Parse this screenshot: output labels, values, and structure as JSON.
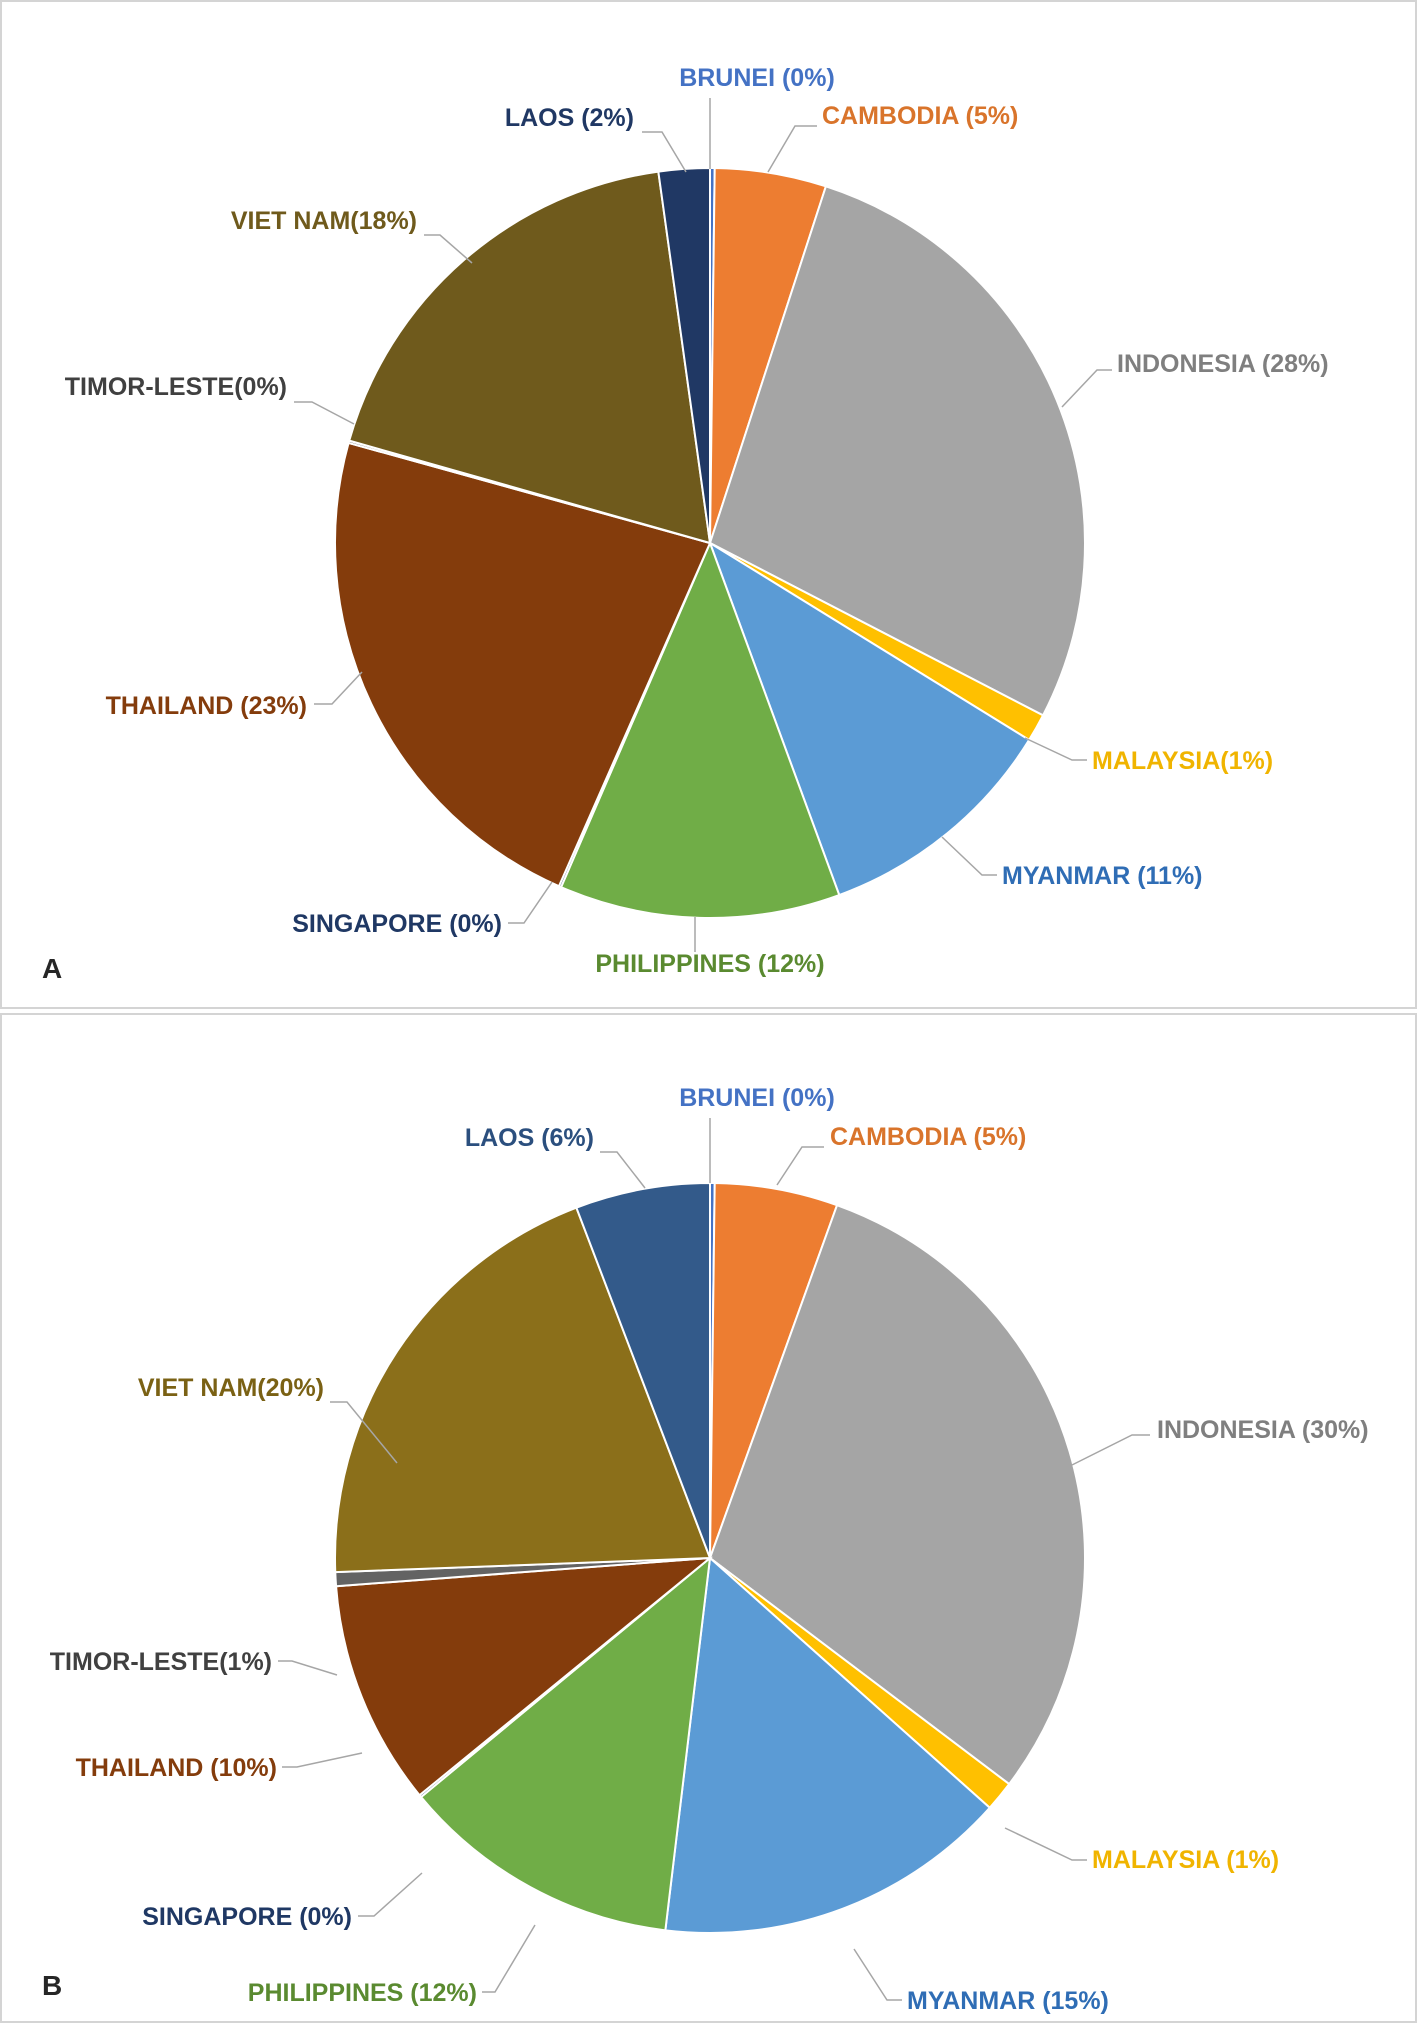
{
  "chart_data": [
    {
      "type": "pie",
      "panel": "A",
      "slices": [
        {
          "label": "BRUNEI (0%)",
          "value": 0.2,
          "color": "#4472c4"
        },
        {
          "label": "CAMBODIA (5%)",
          "value": 4.8,
          "color": "#ed7d31"
        },
        {
          "label": "INDONESIA (28%)",
          "value": 27.6,
          "color": "#a5a5a5"
        },
        {
          "label": "MALAYSIA(1%)",
          "value": 1.2,
          "color": "#ffc000"
        },
        {
          "label": "MYANMAR (11%)",
          "value": 10.6,
          "color": "#5b9bd5"
        },
        {
          "label": "PHILIPPINES (12%)",
          "value": 12.1,
          "color": "#70ad47"
        },
        {
          "label": "SINGAPORE (0%)",
          "value": 0.1,
          "color": "#264478"
        },
        {
          "label": "THAILAND (23%)",
          "value": 22.7,
          "color": "#843c0c"
        },
        {
          "label": "TIMOR-LESTE(0%)",
          "value": 0.1,
          "color": "#636363"
        },
        {
          "label": "VIET NAM(18%)",
          "value": 18.4,
          "color": "#6f5a1c"
        },
        {
          "label": "LAOS (2%)",
          "value": 2.2,
          "color": "#203864"
        }
      ]
    },
    {
      "type": "pie",
      "panel": "B",
      "slices": [
        {
          "label": "BRUNEI (0%)",
          "value": 0.2,
          "color": "#4472c4"
        },
        {
          "label": "CAMBODIA (5%)",
          "value": 5.3,
          "color": "#ed7d31"
        },
        {
          "label": "INDONESIA (30%)",
          "value": 29.8,
          "color": "#a5a5a5"
        },
        {
          "label": "MALAYSIA (1%)",
          "value": 1.3,
          "color": "#ffc000"
        },
        {
          "label": "MYANMAR (15%)",
          "value": 15.3,
          "color": "#5b9bd5"
        },
        {
          "label": "PHILIPPINES (12%)",
          "value": 12.1,
          "color": "#70ad47"
        },
        {
          "label": "SINGAPORE (0%)",
          "value": 0.1,
          "color": "#264478"
        },
        {
          "label": "THAILAND (10%)",
          "value": 9.7,
          "color": "#843c0c"
        },
        {
          "label": "TIMOR-LESTE(1%)",
          "value": 0.6,
          "color": "#636363"
        },
        {
          "label": "VIET NAM(20%)",
          "value": 19.8,
          "color": "#8b6f1a"
        },
        {
          "label": "LAOS (6%)",
          "value": 5.8,
          "color": "#335a8a"
        }
      ]
    }
  ],
  "panels": {
    "a_label": "A",
    "b_label": "B"
  }
}
